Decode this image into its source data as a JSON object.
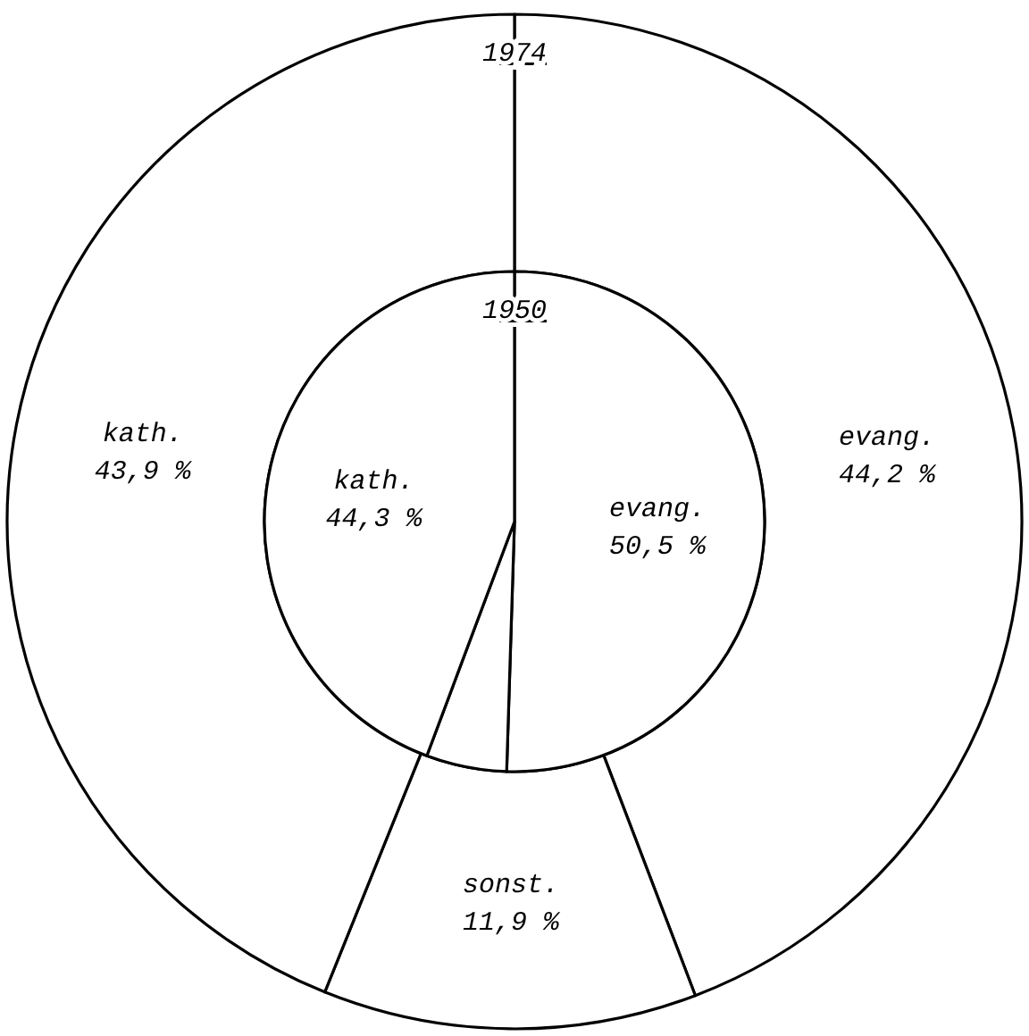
{
  "chart_data": [
    {
      "type": "pie",
      "title": "1950",
      "categories": [
        "evang.",
        null,
        "kath."
      ],
      "colors": [
        "#ffffff",
        "#ffffff",
        "#ffffff"
      ],
      "values": [
        50.5,
        5.2,
        44.3
      ],
      "value_labels": [
        "50,5 %",
        null,
        "44,3 %"
      ]
    },
    {
      "type": "donut",
      "title": "1974",
      "categories": [
        "evang.",
        "sonst.",
        "kath."
      ],
      "colors": [
        "#ffffff",
        "#ffffff",
        "#ffffff"
      ],
      "values": [
        44.2,
        11.9,
        43.9
      ],
      "value_labels": [
        "44,2 %",
        "11,9 %",
        "43,9 %"
      ]
    }
  ]
}
